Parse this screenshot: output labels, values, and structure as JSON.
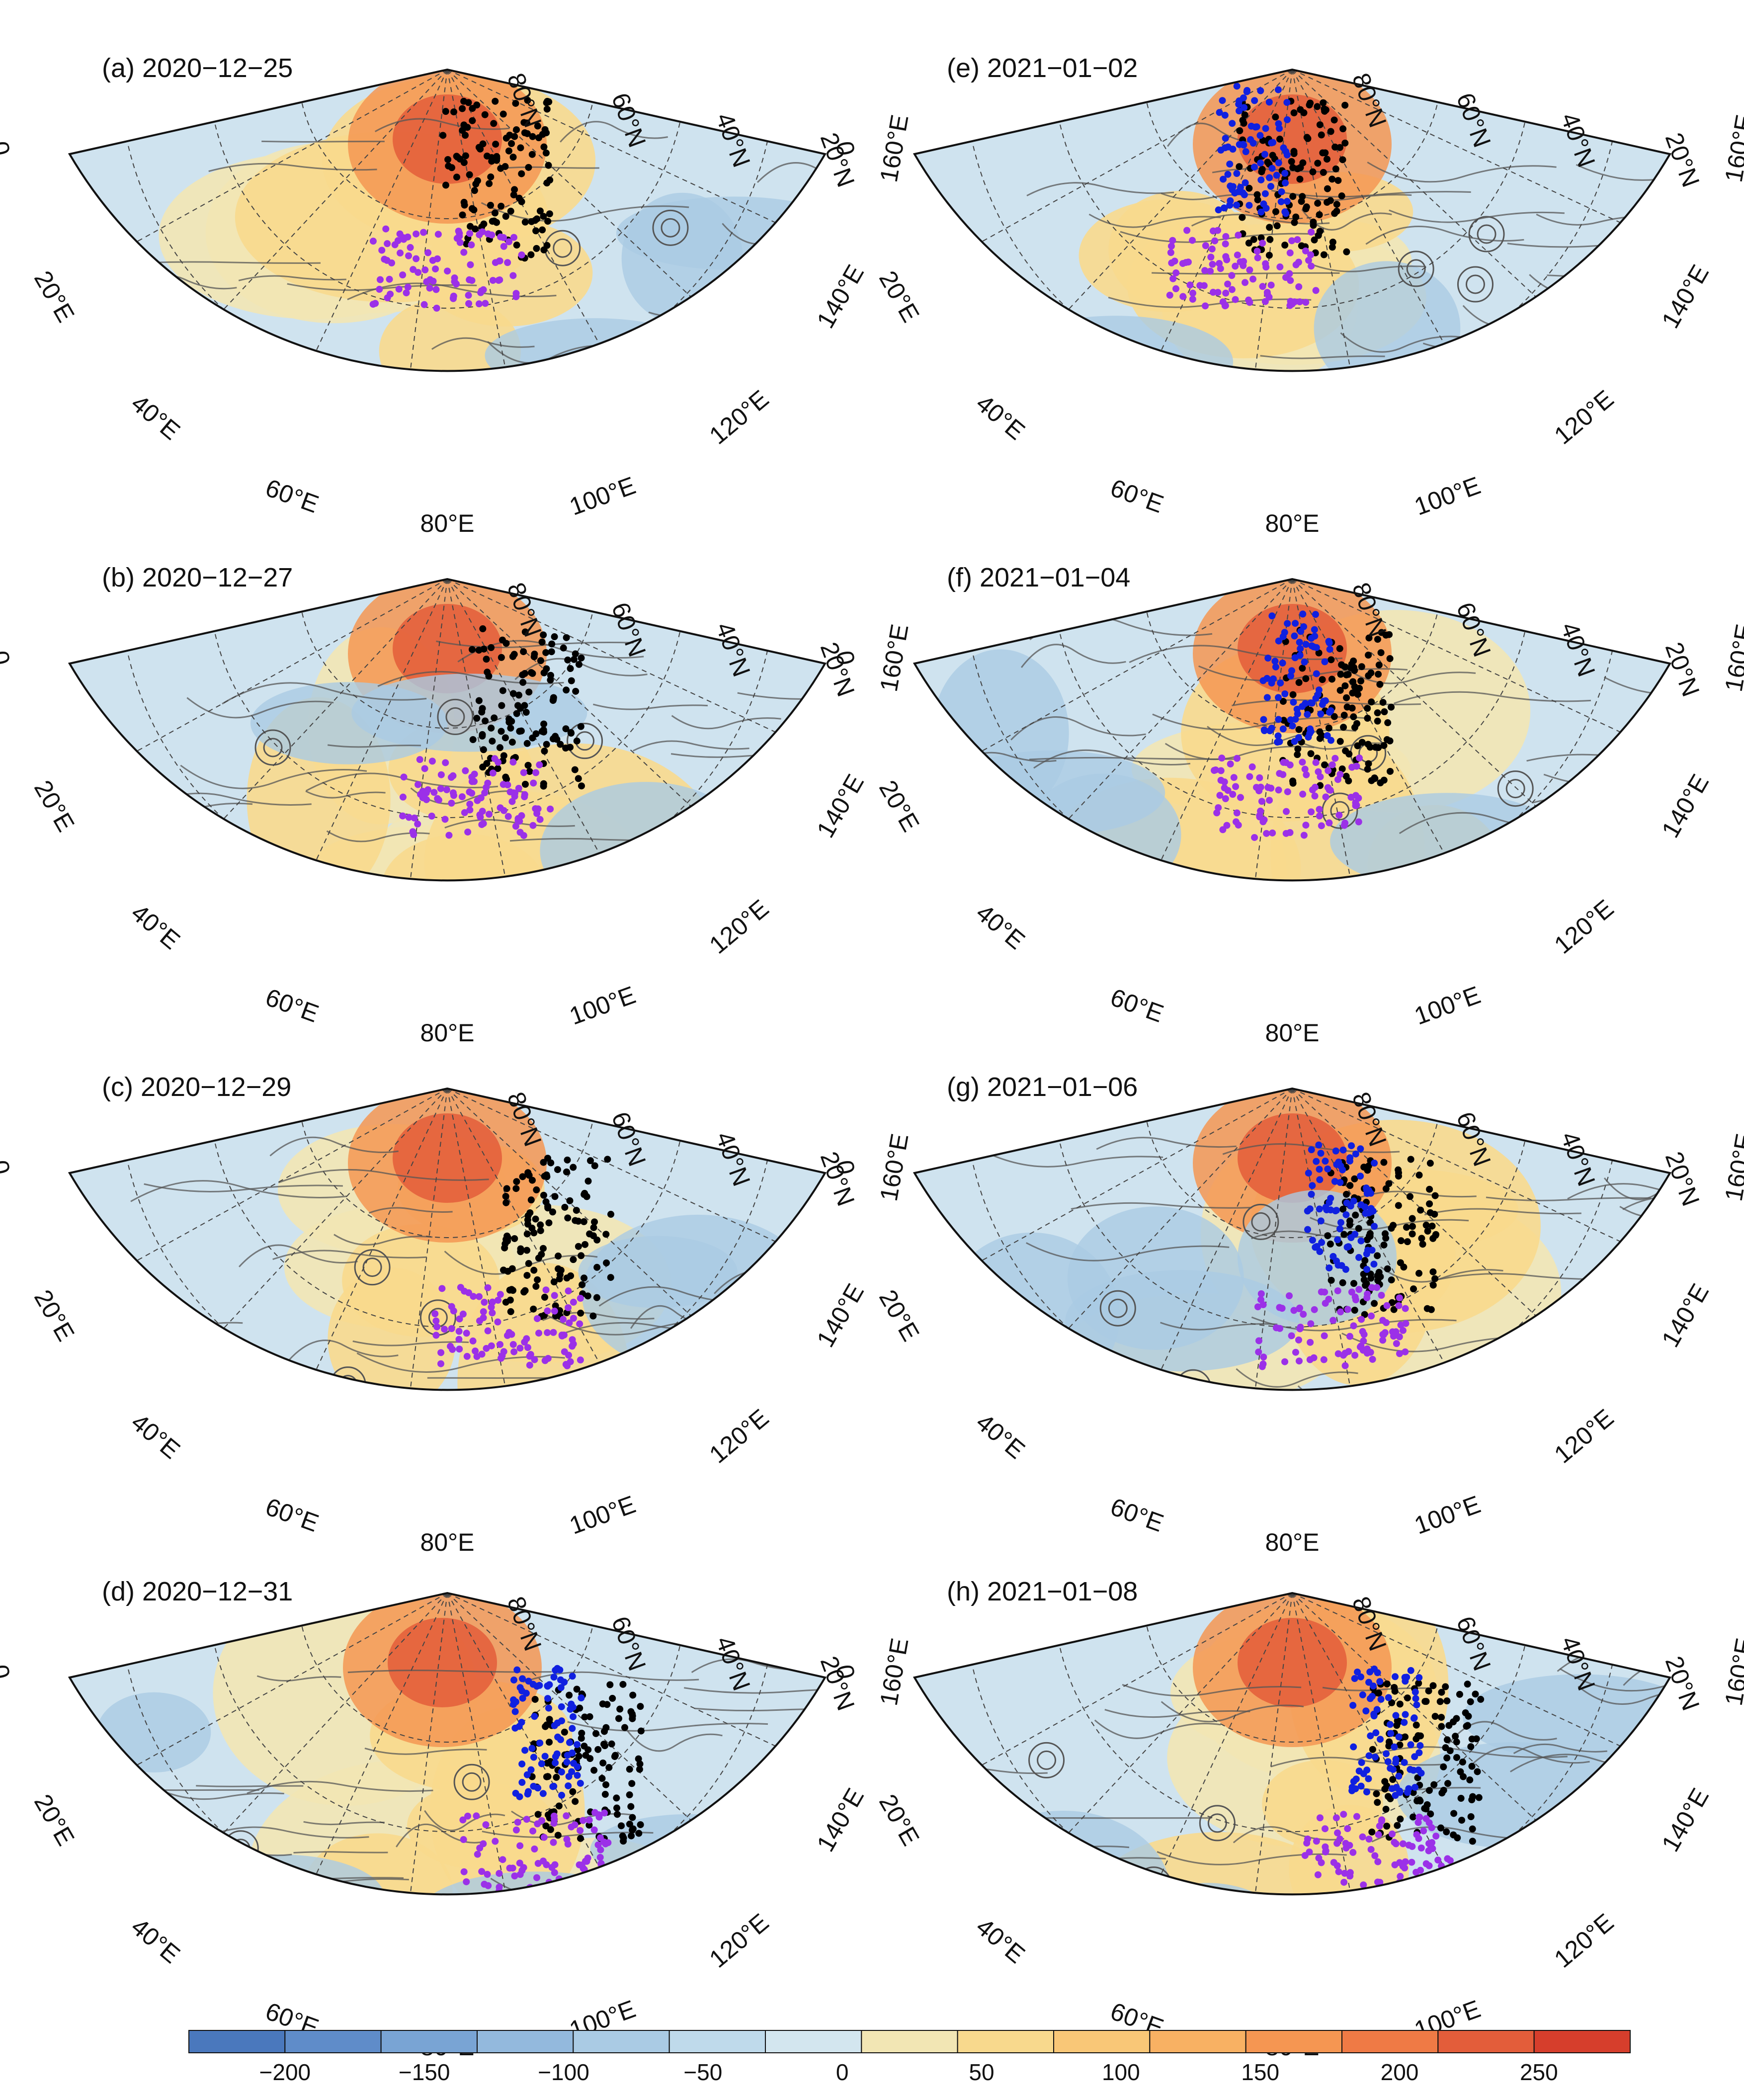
{
  "panels": [
    {
      "id": "a",
      "title": "(a) 2020−12−25",
      "date": "2020-12-25"
    },
    {
      "id": "b",
      "title": "(b) 2020−12−27",
      "date": "2020-12-27"
    },
    {
      "id": "c",
      "title": "(c) 2020−12−29",
      "date": "2020-12-29"
    },
    {
      "id": "d",
      "title": "(d) 2020−12−31",
      "date": "2020-12-31"
    },
    {
      "id": "e",
      "title": "(e) 2021−01−02",
      "date": "2021-01-02"
    },
    {
      "id": "f",
      "title": "(f) 2021−01−04",
      "date": "2021-01-04"
    },
    {
      "id": "g",
      "title": "(g) 2021−01−06",
      "date": "2021-01-06"
    },
    {
      "id": "h",
      "title": "(h) 2021−01−08",
      "date": "2021-01-08"
    }
  ],
  "lon_labels": [
    "0",
    "20°E",
    "40°E",
    "60°E",
    "80°E",
    "100°E",
    "120°E",
    "140°E",
    "160°E"
  ],
  "lat_labels": [
    "80°N",
    "60°N",
    "40°N",
    "20°N"
  ],
  "colorbar": {
    "ticks": [
      "−200",
      "−150",
      "−100",
      "−50",
      "0",
      "50",
      "100",
      "150",
      "200",
      "250"
    ],
    "colors": [
      "#4a78bd",
      "#5f8cc9",
      "#79a4d4",
      "#93b9dd",
      "#aacbe4",
      "#bfdaeb",
      "#d3e6ef",
      "#f2e6b4",
      "#f8d98d",
      "#f9c777",
      "#f8b163",
      "#f59652",
      "#ef7a45",
      "#e35d3a",
      "#d63e2c"
    ]
  },
  "legend_colors": {
    "purple": "#9b30e8",
    "black": "#000000",
    "blue": "#1020e0"
  }
}
